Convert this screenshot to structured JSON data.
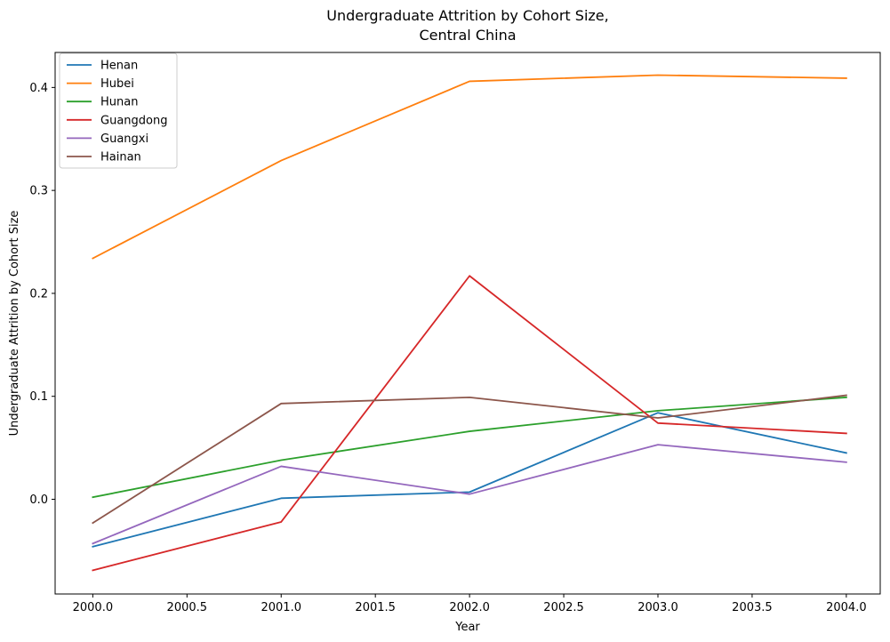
{
  "chart_data": {
    "type": "line",
    "title_lines": [
      "Undergraduate Attrition by Cohort Size,",
      "Central China"
    ],
    "xlabel": "Year",
    "ylabel": "Undergraduate Attrition by Cohort Size",
    "x": [
      2000,
      2001,
      2002,
      2003,
      2004
    ],
    "xlim": [
      1999.8,
      2004.18
    ],
    "ylim": [
      -0.092,
      0.434
    ],
    "x_ticks": [
      2000.0,
      2000.5,
      2001.0,
      2001.5,
      2002.0,
      2002.5,
      2003.0,
      2003.5,
      2004.0
    ],
    "x_tick_labels": [
      "2000.0",
      "2000.5",
      "2001.0",
      "2001.5",
      "2002.0",
      "2002.5",
      "2003.0",
      "2003.5",
      "2004.0"
    ],
    "y_ticks": [
      0.0,
      0.1,
      0.2,
      0.3,
      0.4
    ],
    "y_tick_labels": [
      "0.0",
      "0.1",
      "0.2",
      "0.3",
      "0.4"
    ],
    "grid": false,
    "legend_position": "top-left",
    "series": [
      {
        "name": "Henan",
        "color": "#1f77b4",
        "values": [
          -0.046,
          0.001,
          0.007,
          0.084,
          0.045
        ]
      },
      {
        "name": "Hubei",
        "color": "#ff7f0e",
        "values": [
          0.234,
          0.329,
          0.406,
          0.412,
          0.409
        ]
      },
      {
        "name": "Hunan",
        "color": "#2ca02c",
        "values": [
          0.002,
          0.038,
          0.066,
          0.086,
          0.099
        ]
      },
      {
        "name": "Guangdong",
        "color": "#d62728",
        "values": [
          -0.069,
          -0.022,
          0.217,
          0.074,
          0.064
        ]
      },
      {
        "name": "Guangxi",
        "color": "#9467bd",
        "values": [
          -0.043,
          0.032,
          0.005,
          0.053,
          0.036
        ]
      },
      {
        "name": "Hainan",
        "color": "#8c564b",
        "values": [
          -0.023,
          0.093,
          0.099,
          0.079,
          0.101
        ]
      }
    ]
  }
}
